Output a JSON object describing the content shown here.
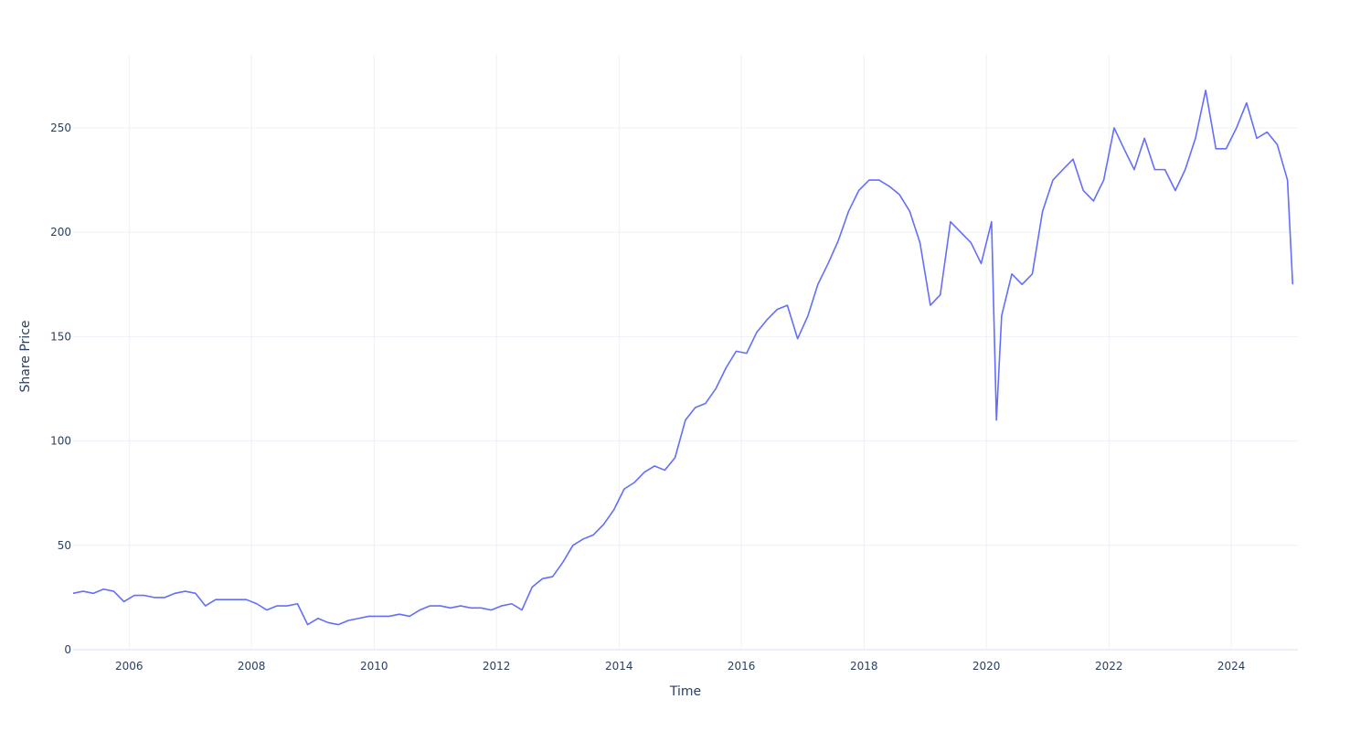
{
  "chart_data": {
    "type": "line",
    "xlabel": "Time",
    "ylabel": "Share Price",
    "xlim": [
      "2005-02-01",
      "2025-02-01"
    ],
    "ylim": [
      0,
      285
    ],
    "x_ticks": [
      "2006",
      "2008",
      "2010",
      "2012",
      "2014",
      "2016",
      "2018",
      "2020",
      "2022",
      "2024"
    ],
    "y_ticks": [
      "0",
      "50",
      "100",
      "150",
      "200",
      "250"
    ],
    "grid": true,
    "legend": false,
    "colors": {
      "line": "#636efa",
      "grid": "#ebf0f8",
      "text": "#2a3f5f"
    },
    "series": [
      {
        "x": [
          "2005-02",
          "2005-04",
          "2005-06",
          "2005-08",
          "2005-10",
          "2005-12",
          "2006-02",
          "2006-04",
          "2006-06",
          "2006-08",
          "2006-10",
          "2006-12",
          "2007-02",
          "2007-04",
          "2007-06",
          "2007-08",
          "2007-10",
          "2007-12",
          "2008-02",
          "2008-04",
          "2008-06",
          "2008-08",
          "2008-10",
          "2008-12",
          "2009-02",
          "2009-04",
          "2009-06",
          "2009-08",
          "2009-10",
          "2009-12",
          "2010-02",
          "2010-04",
          "2010-06",
          "2010-08",
          "2010-10",
          "2010-12",
          "2011-02",
          "2011-04",
          "2011-06",
          "2011-08",
          "2011-10",
          "2011-12",
          "2012-02",
          "2012-04",
          "2012-06",
          "2012-08",
          "2012-10",
          "2012-12",
          "2013-02",
          "2013-04",
          "2013-06",
          "2013-08",
          "2013-10",
          "2013-12",
          "2014-02",
          "2014-04",
          "2014-06",
          "2014-08",
          "2014-10",
          "2014-12",
          "2015-02",
          "2015-04",
          "2015-06",
          "2015-08",
          "2015-10",
          "2015-12",
          "2016-02",
          "2016-04",
          "2016-06",
          "2016-08",
          "2016-10",
          "2016-12",
          "2017-02",
          "2017-04",
          "2017-06",
          "2017-08",
          "2017-10",
          "2017-12",
          "2018-02",
          "2018-04",
          "2018-06",
          "2018-08",
          "2018-10",
          "2018-12",
          "2019-02",
          "2019-04",
          "2019-06",
          "2019-08",
          "2019-10",
          "2019-12",
          "2020-02",
          "2020-03",
          "2020-04",
          "2020-06",
          "2020-08",
          "2020-10",
          "2020-12",
          "2021-02",
          "2021-04",
          "2021-06",
          "2021-08",
          "2021-10",
          "2021-12",
          "2022-02",
          "2022-04",
          "2022-06",
          "2022-08",
          "2022-10",
          "2022-12",
          "2023-02",
          "2023-04",
          "2023-06",
          "2023-08",
          "2023-10",
          "2023-12",
          "2024-02",
          "2024-04",
          "2024-06",
          "2024-08",
          "2024-10",
          "2024-12",
          "2025-01"
        ],
        "y": [
          27,
          28,
          27,
          29,
          28,
          23,
          26,
          26,
          25,
          25,
          27,
          28,
          27,
          21,
          24,
          24,
          24,
          24,
          22,
          19,
          21,
          21,
          22,
          12,
          15,
          13,
          12,
          14,
          15,
          16,
          16,
          16,
          17,
          16,
          19,
          21,
          21,
          20,
          21,
          20,
          20,
          19,
          21,
          22,
          19,
          30,
          34,
          35,
          42,
          50,
          53,
          55,
          60,
          67,
          77,
          80,
          85,
          88,
          86,
          92,
          110,
          116,
          118,
          125,
          135,
          143,
          142,
          152,
          158,
          163,
          165,
          149,
          160,
          175,
          185,
          196,
          210,
          220,
          225,
          225,
          222,
          218,
          210,
          195,
          165,
          170,
          205,
          200,
          195,
          185,
          205,
          110,
          160,
          180,
          175,
          180,
          210,
          225,
          230,
          235,
          220,
          215,
          225,
          250,
          240,
          230,
          245,
          230,
          230,
          220,
          230,
          245,
          268,
          240,
          240,
          250,
          262,
          245,
          248,
          242,
          225,
          175
        ]
      }
    ]
  }
}
